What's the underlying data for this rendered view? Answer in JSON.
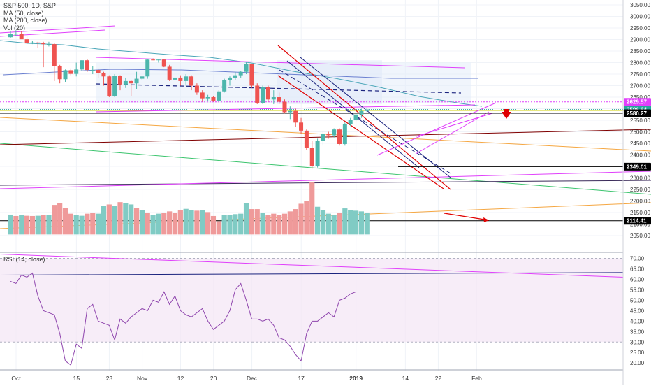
{
  "legend": {
    "symbol_line": "S&P 500, 1D, S&P",
    "ma50": "MA (50, close)",
    "ma200": "MA (200, close)",
    "vol": "Vol (20)",
    "rsi": "RSI (14, close)"
  },
  "colors": {
    "bull": "#4db6ac",
    "bear": "#ef5350",
    "vol_bull": "#80cbc4",
    "vol_bear": "#ef9a9a",
    "magenta": "#e040fb",
    "navy": "#1a237e",
    "rsi_line": "#8e44ad",
    "rsi_band": "#f3e5f5",
    "red_arrow": "#e00000"
  },
  "chart_data": {
    "type": "candlestick",
    "y_axis": {
      "min": 2000,
      "max": 3050,
      "ticks": [
        "3050.00",
        "3000.00",
        "2950.00",
        "2900.00",
        "2850.00",
        "2800.00",
        "2750.00",
        "2700.00",
        "2650.00",
        "2600.00",
        "2550.00",
        "2500.00",
        "2450.00",
        "2400.00",
        "2350.00",
        "2300.00",
        "2250.00",
        "2200.00",
        "2150.00",
        "2100.00",
        "2050.00"
      ],
      "tick_values": [
        3050,
        3000,
        2950,
        2900,
        2850,
        2800,
        2750,
        2700,
        2650,
        2600,
        2550,
        2500,
        2450,
        2400,
        2350,
        2300,
        2250,
        2200,
        2150,
        2100,
        2050
      ]
    },
    "price_labels": [
      {
        "text": "2629.57",
        "value": 2629.57,
        "color": "#e040fb"
      },
      {
        "text": "2596.64",
        "value": 2596.64,
        "color": "#26a69a"
      },
      {
        "text": "2580.27",
        "value": 2580.27,
        "color": "#000000"
      },
      {
        "text": "2349.01",
        "value": 2349.01,
        "color": "#000000"
      },
      {
        "text": "2114.41",
        "value": 2114.41,
        "color": "#000000"
      }
    ],
    "x_ticks": [
      {
        "label": "Oct",
        "index": 0
      },
      {
        "label": "15",
        "index": 11
      },
      {
        "label": "23",
        "index": 17
      },
      {
        "label": "Nov",
        "index": 23
      },
      {
        "label": "12",
        "index": 30
      },
      {
        "label": "20",
        "index": 36
      },
      {
        "label": "Dec",
        "index": 43
      },
      {
        "label": "17",
        "index": 52
      },
      {
        "label": "2019",
        "index": 62
      },
      {
        "label": "14",
        "index": 71
      },
      {
        "label": "22",
        "index": 77
      },
      {
        "label": "Feb",
        "index": 84
      }
    ],
    "candles": [
      [
        2910,
        2935,
        2905,
        2925
      ],
      [
        2925,
        2940,
        2915,
        2925
      ],
      [
        2925,
        2935,
        2905,
        2901
      ],
      [
        2901,
        2915,
        2880,
        2885
      ],
      [
        2885,
        2895,
        2880,
        2887
      ],
      [
        2887,
        2890,
        2865,
        2884
      ],
      [
        2884,
        2890,
        2780,
        2880
      ],
      [
        2880,
        2890,
        2870,
        2880
      ],
      [
        2880,
        2885,
        2720,
        2785
      ],
      [
        2785,
        2790,
        2710,
        2728
      ],
      [
        2728,
        2770,
        2715,
        2767
      ],
      [
        2767,
        2775,
        2745,
        2751
      ],
      [
        2751,
        2800,
        2740,
        2770
      ],
      [
        2770,
        2810,
        2765,
        2810
      ],
      [
        2810,
        2815,
        2760,
        2768
      ],
      [
        2768,
        2785,
        2750,
        2768
      ],
      [
        2768,
        2775,
        2735,
        2756
      ],
      [
        2756,
        2760,
        2700,
        2740
      ],
      [
        2740,
        2745,
        2650,
        2656
      ],
      [
        2656,
        2750,
        2650,
        2741
      ],
      [
        2741,
        2745,
        2680,
        2705
      ],
      [
        2705,
        2735,
        2690,
        2720
      ],
      [
        2720,
        2725,
        2655,
        2710
      ],
      [
        2710,
        2760,
        2685,
        2730
      ],
      [
        2730,
        2740,
        2725,
        2740
      ],
      [
        2740,
        2815,
        2730,
        2813
      ],
      [
        2813,
        2818,
        2810,
        2812
      ],
      [
        2812,
        2815,
        2800,
        2813
      ],
      [
        2813,
        2815,
        2780,
        2782
      ],
      [
        2782,
        2790,
        2720,
        2726
      ],
      [
        2726,
        2750,
        2715,
        2735
      ],
      [
        2735,
        2745,
        2700,
        2720
      ],
      [
        2720,
        2750,
        2700,
        2740
      ],
      [
        2740,
        2745,
        2680,
        2700
      ],
      [
        2700,
        2710,
        2660,
        2670
      ],
      [
        2670,
        2680,
        2630,
        2645
      ],
      [
        2645,
        2660,
        2635,
        2650
      ],
      [
        2650,
        2655,
        2630,
        2635
      ],
      [
        2635,
        2680,
        2630,
        2675
      ],
      [
        2675,
        2730,
        2670,
        2725
      ],
      [
        2725,
        2740,
        2700,
        2735
      ],
      [
        2735,
        2760,
        2725,
        2745
      ],
      [
        2745,
        2765,
        2735,
        2760
      ],
      [
        2760,
        2800,
        2750,
        2795
      ],
      [
        2795,
        2790,
        2690,
        2700
      ],
      [
        2700,
        2710,
        2620,
        2625
      ],
      [
        2625,
        2700,
        2620,
        2695
      ],
      [
        2695,
        2700,
        2630,
        2640
      ],
      [
        2640,
        2680,
        2620,
        2650
      ],
      [
        2650,
        2670,
        2620,
        2630
      ],
      [
        2630,
        2640,
        2580,
        2585
      ],
      [
        2585,
        2610,
        2555,
        2590
      ],
      [
        2590,
        2600,
        2520,
        2540
      ],
      [
        2540,
        2560,
        2490,
        2505
      ],
      [
        2505,
        2510,
        2420,
        2430
      ],
      [
        2430,
        2460,
        2340,
        2350
      ],
      [
        2350,
        2470,
        2345,
        2460
      ],
      [
        2460,
        2500,
        2440,
        2490
      ],
      [
        2490,
        2500,
        2470,
        2485
      ],
      [
        2485,
        2515,
        2475,
        2510
      ],
      [
        2510,
        2515,
        2440,
        2447
      ],
      [
        2447,
        2540,
        2440,
        2532
      ],
      [
        2532,
        2560,
        2525,
        2550
      ],
      [
        2550,
        2580,
        2545,
        2575
      ],
      [
        2575,
        2600,
        2560,
        2590
      ],
      [
        2590,
        2605,
        2585,
        2597
      ]
    ],
    "volume_scale": {
      "min": 2000,
      "max": 3050
    },
    "volumes": [
      [
        2141,
        "up"
      ],
      [
        2135,
        "down"
      ],
      [
        2138,
        "up"
      ],
      [
        2136,
        "down"
      ],
      [
        2135,
        "down"
      ],
      [
        2136,
        "up"
      ],
      [
        2140,
        "down"
      ],
      [
        2138,
        "up"
      ],
      [
        2183,
        "down"
      ],
      [
        2190,
        "down"
      ],
      [
        2170,
        "down"
      ],
      [
        2145,
        "down"
      ],
      [
        2140,
        "up"
      ],
      [
        2136,
        "up"
      ],
      [
        2145,
        "down"
      ],
      [
        2150,
        "down"
      ],
      [
        2145,
        "up"
      ],
      [
        2178,
        "up"
      ],
      [
        2185,
        "down"
      ],
      [
        2180,
        "up"
      ],
      [
        2195,
        "down"
      ],
      [
        2192,
        "up"
      ],
      [
        2185,
        "up"
      ],
      [
        2170,
        "down"
      ],
      [
        2162,
        "up"
      ],
      [
        2150,
        "down"
      ],
      [
        2140,
        "up"
      ],
      [
        2145,
        "up"
      ],
      [
        2150,
        "down"
      ],
      [
        2155,
        "down"
      ],
      [
        2148,
        "down"
      ],
      [
        2162,
        "down"
      ],
      [
        2166,
        "up"
      ],
      [
        2162,
        "up"
      ],
      [
        2158,
        "down"
      ],
      [
        2160,
        "up"
      ],
      [
        2152,
        "down"
      ],
      [
        2135,
        "down"
      ],
      [
        2112,
        "down"
      ],
      [
        2140,
        "up"
      ],
      [
        2140,
        "up"
      ],
      [
        2143,
        "up"
      ],
      [
        2145,
        "up"
      ],
      [
        2190,
        "up"
      ],
      [
        2165,
        "down"
      ],
      [
        2165,
        "down"
      ],
      [
        2150,
        "up"
      ],
      [
        2140,
        "down"
      ],
      [
        2145,
        "down"
      ],
      [
        2140,
        "down"
      ],
      [
        2145,
        "down"
      ],
      [
        2155,
        "down"
      ],
      [
        2165,
        "down"
      ],
      [
        2188,
        "down"
      ],
      [
        2200,
        "down"
      ],
      [
        2280,
        "down"
      ],
      [
        2175,
        "up"
      ],
      [
        2160,
        "up"
      ],
      [
        2145,
        "up"
      ],
      [
        2138,
        "up"
      ],
      [
        2150,
        "down"
      ],
      [
        2168,
        "up"
      ],
      [
        2162,
        "up"
      ],
      [
        2158,
        "up"
      ],
      [
        2155,
        "up"
      ],
      [
        2150,
        "up"
      ]
    ],
    "rsi": {
      "min": 15,
      "max": 75,
      "ticks": [
        "70.00",
        "65.00",
        "60.00",
        "55.00",
        "50.00",
        "45.00",
        "40.00",
        "35.00",
        "30.00",
        "25.00",
        "20.00"
      ],
      "tick_values": [
        70,
        65,
        60,
        55,
        50,
        45,
        40,
        35,
        30,
        25,
        20
      ],
      "band": [
        30,
        70
      ],
      "values": [
        59,
        58,
        62,
        61,
        63,
        52,
        45,
        44,
        43,
        34,
        21,
        19,
        29,
        27,
        46,
        48,
        40,
        39,
        38,
        31,
        41,
        39,
        42,
        44,
        46,
        45,
        50,
        49,
        54,
        48,
        52,
        45,
        43,
        42,
        44,
        46,
        40,
        36,
        38,
        40,
        45,
        55,
        58,
        50,
        41,
        41,
        40,
        41,
        38,
        32,
        31,
        28,
        24,
        21,
        34,
        40,
        40,
        42,
        44,
        42,
        50,
        51,
        53,
        54
      ],
      "start_index": 0
    }
  },
  "price_label_text": {
    "p1": "2629.57",
    "p2": "2596.64",
    "p3": "2580.27",
    "p4": "2349.01",
    "p5": "2114.41"
  }
}
